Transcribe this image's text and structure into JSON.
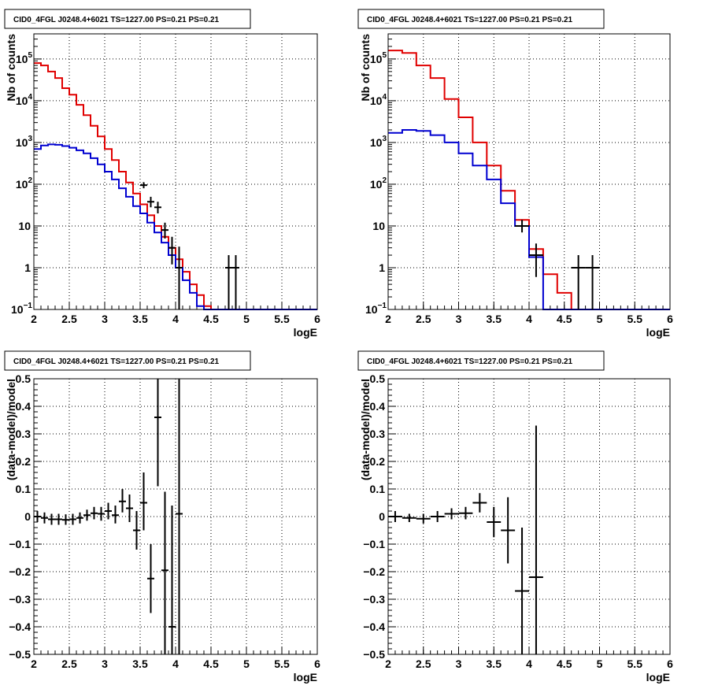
{
  "chart_data": [
    {
      "type": "line",
      "title": "CID0_4FGL J0248.4+6021 TS=1227.00 PS=0.21 PS=0.21",
      "xlabel": "logE",
      "ylabel": "Nb of counts",
      "xlim": [
        2,
        6
      ],
      "ylim": [
        0.1,
        400000
      ],
      "yscale": "log",
      "grid": true,
      "x_ticks": [
        "2",
        "2.5",
        "3",
        "3.5",
        "4",
        "4.5",
        "5",
        "5.5",
        "6"
      ],
      "y_ticks": [
        {
          "value": 0.1,
          "label": "10",
          "sup": "−1"
        },
        {
          "value": 1,
          "label": "1",
          "sup": ""
        },
        {
          "value": 10,
          "label": "10",
          "sup": ""
        },
        {
          "value": 100,
          "label": "10",
          "sup": "2"
        },
        {
          "value": 1000,
          "label": "10",
          "sup": "3"
        },
        {
          "value": 10000,
          "label": "10",
          "sup": "4"
        },
        {
          "value": 100000,
          "label": "10",
          "sup": "5"
        }
      ],
      "bin_edges": [
        2.0,
        2.1,
        2.2,
        2.3,
        2.4,
        2.5,
        2.6,
        2.7,
        2.8,
        2.9,
        3.0,
        3.1,
        3.2,
        3.3,
        3.4,
        3.5,
        3.6,
        3.7,
        3.8,
        3.9,
        4.0,
        4.1,
        4.2,
        4.3,
        4.4,
        4.5,
        4.6,
        4.7,
        4.8,
        4.9,
        5.0,
        5.1,
        5.2,
        5.3,
        5.4,
        5.5,
        5.6,
        5.7,
        5.8,
        5.9,
        6.0
      ],
      "series": [
        {
          "color": "#e00000",
          "style": "histogram",
          "values": [
            80000,
            70000,
            50000,
            35000,
            20000,
            14000,
            8000,
            4500,
            2500,
            1400,
            700,
            380,
            200,
            110,
            60,
            33,
            18,
            10,
            5.5,
            3.0,
            1.6,
            0.8,
            0.4,
            0.22,
            0.12,
            0.1,
            0.1,
            0.1,
            0.1,
            0.1,
            0.1,
            0.1,
            0.1,
            0.1,
            0.1,
            0.1,
            0.1,
            0.1,
            0.1,
            0.1
          ]
        },
        {
          "color": "#0000d0",
          "style": "histogram",
          "values": [
            700,
            850,
            900,
            880,
            820,
            750,
            650,
            550,
            420,
            300,
            200,
            130,
            80,
            50,
            30,
            20,
            12,
            7,
            4,
            2,
            1,
            0.5,
            0.25,
            0.12,
            0.1,
            0.1,
            0.1,
            0.1,
            0.1,
            0.1,
            0.1,
            0.1,
            0.1,
            0.1,
            0.1,
            0.1,
            0.1,
            0.1,
            0.1,
            0.1
          ]
        },
        {
          "color": "#000000",
          "style": "points",
          "points": [
            {
              "x": 3.55,
              "y": 95,
              "xerr": 0.05,
              "ylo": 80,
              "yhi": 112
            },
            {
              "x": 3.65,
              "y": 38,
              "xerr": 0.05,
              "ylo": 28,
              "yhi": 50
            },
            {
              "x": 3.75,
              "y": 28,
              "xerr": 0.05,
              "ylo": 20,
              "yhi": 38
            },
            {
              "x": 3.85,
              "y": 8,
              "xerr": 0.05,
              "ylo": 5,
              "yhi": 12
            },
            {
              "x": 3.95,
              "y": 3,
              "xerr": 0.05,
              "ylo": 1.2,
              "yhi": 5.5
            },
            {
              "x": 4.05,
              "y": 1,
              "xerr": 0.05,
              "ylo": 0.1,
              "yhi": 3.2
            },
            {
              "x": 4.75,
              "y": 1,
              "xerr": 0.05,
              "ylo": 0.1,
              "yhi": 2.0
            },
            {
              "x": 4.85,
              "y": 1,
              "xerr": 0.05,
              "ylo": 0.1,
              "yhi": 2.0
            }
          ]
        }
      ]
    },
    {
      "type": "line",
      "title": "CID0_4FGL J0248.4+6021 TS=1227.00 PS=0.21 PS=0.21",
      "xlabel": "logE",
      "ylabel": "Nb of counts",
      "xlim": [
        2,
        6
      ],
      "ylim": [
        0.1,
        400000
      ],
      "yscale": "log",
      "grid": true,
      "x_ticks": [
        "2",
        "2.5",
        "3",
        "3.5",
        "4",
        "4.5",
        "5",
        "5.5",
        "6"
      ],
      "y_ticks": [
        {
          "value": 0.1,
          "label": "10",
          "sup": "−1"
        },
        {
          "value": 1,
          "label": "1",
          "sup": ""
        },
        {
          "value": 10,
          "label": "10",
          "sup": ""
        },
        {
          "value": 100,
          "label": "10",
          "sup": "2"
        },
        {
          "value": 1000,
          "label": "10",
          "sup": "3"
        },
        {
          "value": 10000,
          "label": "10",
          "sup": "4"
        },
        {
          "value": 100000,
          "label": "10",
          "sup": "5"
        }
      ],
      "bin_edges": [
        2.0,
        2.2,
        2.4,
        2.6,
        2.8,
        3.0,
        3.2,
        3.4,
        3.6,
        3.8,
        4.0,
        4.2,
        4.4,
        4.6,
        4.8,
        5.0,
        5.2,
        5.4,
        5.6,
        5.8,
        6.0
      ],
      "series": [
        {
          "color": "#e00000",
          "style": "histogram",
          "values": [
            160000,
            140000,
            70000,
            35000,
            11000,
            4000,
            1000,
            280,
            70,
            14,
            2.8,
            0.7,
            0.25,
            0.1,
            0.1,
            0.1,
            0.1,
            0.1,
            0.1,
            0.1
          ]
        },
        {
          "color": "#0000d0",
          "style": "histogram",
          "values": [
            1700,
            2000,
            1900,
            1500,
            1000,
            550,
            280,
            130,
            35,
            10,
            1.8,
            0.1,
            0.1,
            0.1,
            0.1,
            0.1,
            0.1,
            0.1,
            0.1,
            0.1
          ]
        },
        {
          "color": "#000000",
          "style": "points",
          "points": [
            {
              "x": 3.9,
              "y": 10,
              "xerr": 0.1,
              "ylo": 7,
              "yhi": 14
            },
            {
              "x": 4.1,
              "y": 2,
              "xerr": 0.1,
              "ylo": 0.6,
              "yhi": 3.8
            },
            {
              "x": 4.7,
              "y": 1,
              "xerr": 0.1,
              "ylo": 0.1,
              "yhi": 2.0
            },
            {
              "x": 4.9,
              "y": 1,
              "xerr": 0.1,
              "ylo": 0.1,
              "yhi": 2.0
            }
          ]
        }
      ]
    },
    {
      "type": "scatter",
      "title": "CID0_4FGL J0248.4+6021 TS=1227.00 PS=0.21 PS=0.21",
      "xlabel": "logE",
      "ylabel": "(data-model)/model",
      "xlim": [
        2,
        6
      ],
      "ylim": [
        -0.5,
        0.5
      ],
      "yscale": "linear",
      "grid": true,
      "x_ticks": [
        "2",
        "2.5",
        "3",
        "3.5",
        "4",
        "4.5",
        "5",
        "5.5",
        "6"
      ],
      "y_ticks": [
        {
          "value": -0.5,
          "label": "−0.5",
          "sup": ""
        },
        {
          "value": -0.4,
          "label": "−0.4",
          "sup": ""
        },
        {
          "value": -0.3,
          "label": "−0.3",
          "sup": ""
        },
        {
          "value": -0.2,
          "label": "−0.2",
          "sup": ""
        },
        {
          "value": -0.1,
          "label": "−0.1",
          "sup": ""
        },
        {
          "value": 0,
          "label": "0",
          "sup": ""
        },
        {
          "value": 0.1,
          "label": "0.1",
          "sup": ""
        },
        {
          "value": 0.2,
          "label": "0.2",
          "sup": ""
        },
        {
          "value": 0.3,
          "label": "0.3",
          "sup": ""
        },
        {
          "value": 0.4,
          "label": "0.4",
          "sup": ""
        },
        {
          "value": 0.5,
          "label": "0.5",
          "sup": ""
        }
      ],
      "series": [
        {
          "color": "#000000",
          "style": "points",
          "points": [
            {
              "x": 2.05,
              "y": 0.0,
              "xerr": 0.05,
              "ylo": -0.02,
              "yhi": 0.02
            },
            {
              "x": 2.15,
              "y": -0.005,
              "xerr": 0.05,
              "ylo": -0.025,
              "yhi": 0.015
            },
            {
              "x": 2.25,
              "y": -0.01,
              "xerr": 0.05,
              "ylo": -0.03,
              "yhi": 0.01
            },
            {
              "x": 2.35,
              "y": -0.01,
              "xerr": 0.05,
              "ylo": -0.03,
              "yhi": 0.01
            },
            {
              "x": 2.45,
              "y": -0.012,
              "xerr": 0.05,
              "ylo": -0.03,
              "yhi": 0.008
            },
            {
              "x": 2.55,
              "y": -0.01,
              "xerr": 0.05,
              "ylo": -0.03,
              "yhi": 0.01
            },
            {
              "x": 2.65,
              "y": -0.005,
              "xerr": 0.05,
              "ylo": -0.025,
              "yhi": 0.015
            },
            {
              "x": 2.75,
              "y": 0.005,
              "xerr": 0.05,
              "ylo": -0.015,
              "yhi": 0.025
            },
            {
              "x": 2.85,
              "y": 0.012,
              "xerr": 0.05,
              "ylo": -0.01,
              "yhi": 0.035
            },
            {
              "x": 2.95,
              "y": 0.01,
              "xerr": 0.05,
              "ylo": -0.015,
              "yhi": 0.035
            },
            {
              "x": 3.05,
              "y": 0.02,
              "xerr": 0.05,
              "ylo": -0.01,
              "yhi": 0.05
            },
            {
              "x": 3.15,
              "y": 0.005,
              "xerr": 0.05,
              "ylo": -0.025,
              "yhi": 0.04
            },
            {
              "x": 3.25,
              "y": 0.055,
              "xerr": 0.05,
              "ylo": 0.015,
              "yhi": 0.1
            },
            {
              "x": 3.35,
              "y": 0.03,
              "xerr": 0.05,
              "ylo": -0.02,
              "yhi": 0.08
            },
            {
              "x": 3.45,
              "y": -0.05,
              "xerr": 0.05,
              "ylo": -0.12,
              "yhi": 0.02
            },
            {
              "x": 3.55,
              "y": 0.05,
              "xerr": 0.05,
              "ylo": -0.05,
              "yhi": 0.16
            },
            {
              "x": 3.65,
              "y": -0.225,
              "xerr": 0.05,
              "ylo": -0.35,
              "yhi": -0.1
            },
            {
              "x": 3.75,
              "y": 0.36,
              "xerr": 0.05,
              "ylo": 0.11,
              "yhi": 0.5
            },
            {
              "x": 3.85,
              "y": -0.195,
              "xerr": 0.05,
              "ylo": -0.5,
              "yhi": 0.09
            },
            {
              "x": 3.95,
              "y": -0.4,
              "xerr": 0.05,
              "ylo": -0.5,
              "yhi": 0.04
            },
            {
              "x": 4.05,
              "y": 0.01,
              "xerr": 0.05,
              "ylo": -0.5,
              "yhi": 0.5
            }
          ]
        }
      ]
    },
    {
      "type": "scatter",
      "title": "CID0_4FGL J0248.4+6021 TS=1227.00 PS=0.21 PS=0.21",
      "xlabel": "logE",
      "ylabel": "(data-model)/model",
      "xlim": [
        2,
        6
      ],
      "ylim": [
        -0.5,
        0.5
      ],
      "yscale": "linear",
      "grid": true,
      "x_ticks": [
        "2",
        "2.5",
        "3",
        "3.5",
        "4",
        "4.5",
        "5",
        "5.5",
        "6"
      ],
      "y_ticks": [
        {
          "value": -0.5,
          "label": "−0.5",
          "sup": ""
        },
        {
          "value": -0.4,
          "label": "−0.4",
          "sup": ""
        },
        {
          "value": -0.3,
          "label": "−0.3",
          "sup": ""
        },
        {
          "value": -0.2,
          "label": "−0.2",
          "sup": ""
        },
        {
          "value": -0.1,
          "label": "−0.1",
          "sup": ""
        },
        {
          "value": 0,
          "label": "0",
          "sup": ""
        },
        {
          "value": 0.1,
          "label": "0.1",
          "sup": ""
        },
        {
          "value": 0.2,
          "label": "0.2",
          "sup": ""
        },
        {
          "value": 0.3,
          "label": "0.3",
          "sup": ""
        },
        {
          "value": 0.4,
          "label": "0.4",
          "sup": ""
        },
        {
          "value": 0.5,
          "label": "0.5",
          "sup": ""
        }
      ],
      "series": [
        {
          "color": "#000000",
          "style": "points",
          "points": [
            {
              "x": 2.1,
              "y": 0.0,
              "xerr": 0.1,
              "ylo": -0.02,
              "yhi": 0.02
            },
            {
              "x": 2.3,
              "y": -0.005,
              "xerr": 0.1,
              "ylo": -0.02,
              "yhi": 0.01
            },
            {
              "x": 2.5,
              "y": -0.008,
              "xerr": 0.1,
              "ylo": -0.025,
              "yhi": 0.01
            },
            {
              "x": 2.7,
              "y": 0.0,
              "xerr": 0.1,
              "ylo": -0.02,
              "yhi": 0.02
            },
            {
              "x": 2.9,
              "y": 0.01,
              "xerr": 0.1,
              "ylo": -0.01,
              "yhi": 0.03
            },
            {
              "x": 3.1,
              "y": 0.012,
              "xerr": 0.1,
              "ylo": -0.01,
              "yhi": 0.035
            },
            {
              "x": 3.3,
              "y": 0.05,
              "xerr": 0.1,
              "ylo": 0.015,
              "yhi": 0.085
            },
            {
              "x": 3.5,
              "y": -0.02,
              "xerr": 0.1,
              "ylo": -0.075,
              "yhi": 0.035
            },
            {
              "x": 3.7,
              "y": -0.05,
              "xerr": 0.1,
              "ylo": -0.17,
              "yhi": 0.07
            },
            {
              "x": 3.9,
              "y": -0.27,
              "xerr": 0.1,
              "ylo": -0.5,
              "yhi": -0.04
            },
            {
              "x": 4.1,
              "y": -0.22,
              "xerr": 0.1,
              "ylo": -0.5,
              "yhi": 0.33
            }
          ]
        }
      ]
    }
  ]
}
